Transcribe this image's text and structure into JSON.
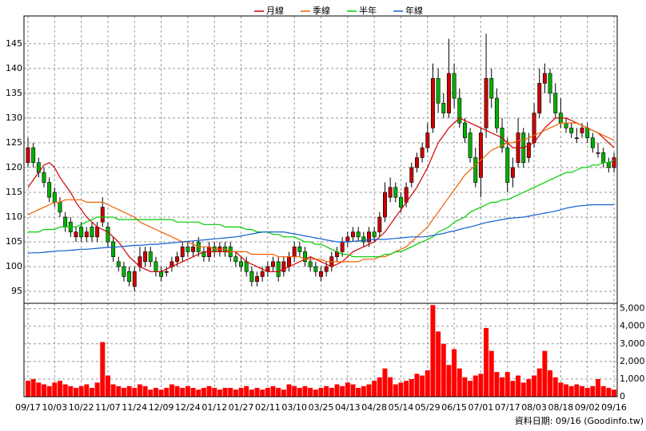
{
  "chart_data": [
    {
      "type": "candlestick",
      "categories": [
        "09/17",
        null,
        null,
        null,
        null,
        "10/03",
        null,
        null,
        null,
        null,
        "10/22",
        null,
        null,
        null,
        null,
        "11/07",
        null,
        null,
        null,
        null,
        "11/24",
        null,
        null,
        null,
        null,
        "12/09",
        null,
        null,
        null,
        null,
        "12/24",
        null,
        null,
        null,
        null,
        "01/12",
        null,
        null,
        null,
        null,
        "01/27",
        null,
        null,
        null,
        null,
        "02/11",
        null,
        null,
        null,
        null,
        "03/10",
        null,
        null,
        null,
        null,
        "03/25",
        null,
        null,
        null,
        null,
        "04/13",
        null,
        null,
        null,
        null,
        "04/28",
        null,
        null,
        null,
        null,
        "05/14",
        null,
        null,
        null,
        null,
        "05/29",
        null,
        null,
        null,
        null,
        "06/15",
        null,
        null,
        null,
        null,
        "07/01",
        null,
        null,
        null,
        null,
        "07/17",
        null,
        null,
        null,
        null,
        "08/03",
        null,
        null,
        null,
        null,
        "08/18",
        null,
        null,
        null,
        null,
        "09/02",
        null,
        null,
        null,
        null,
        "09/16"
      ],
      "open": [
        121,
        124,
        121,
        119,
        117,
        115,
        113,
        110,
        109,
        106,
        108,
        106,
        108,
        106,
        109,
        108,
        105,
        101,
        100,
        99,
        96,
        100,
        101,
        103,
        101,
        99,
        99,
        100,
        101,
        102,
        104,
        103,
        105,
        103,
        102,
        104,
        103,
        104,
        104,
        102,
        101,
        101,
        99,
        97,
        98,
        99,
        100,
        101,
        99,
        100,
        102,
        104,
        103,
        101,
        100,
        98,
        99,
        100,
        102,
        103,
        105,
        106,
        107,
        106,
        105,
        107,
        107,
        110,
        114,
        116,
        114,
        113,
        117,
        120,
        122,
        124,
        128,
        138,
        133,
        131,
        139,
        134,
        129,
        127,
        122,
        118,
        128,
        138,
        134,
        128,
        124,
        118,
        121,
        127,
        122,
        125,
        131,
        137,
        139,
        135,
        131,
        129,
        128,
        126,
        127,
        128,
        126,
        123,
        123,
        121,
        120
      ],
      "high": [
        126,
        125,
        122,
        120,
        118,
        116,
        114,
        111,
        110,
        108,
        109,
        108,
        109,
        109,
        114,
        109,
        106,
        102,
        101,
        100,
        100,
        104,
        104,
        104,
        102,
        100,
        100,
        102,
        103,
        105,
        105,
        105,
        106,
        104,
        105,
        105,
        105,
        105,
        105,
        103,
        102,
        102,
        100,
        99,
        100,
        101,
        102,
        102,
        102,
        103,
        105,
        105,
        104,
        102,
        101,
        100,
        101,
        103,
        104,
        106,
        107,
        108,
        108,
        107,
        108,
        108,
        111,
        117,
        118,
        117,
        115,
        117,
        121,
        123,
        125,
        129,
        141,
        140,
        135,
        146,
        141,
        136,
        130,
        128,
        124,
        128,
        147,
        140,
        136,
        130,
        126,
        122,
        130,
        128,
        127,
        133,
        140,
        141,
        140,
        137,
        134,
        130,
        129,
        128,
        129,
        129,
        127,
        125,
        124,
        122,
        123
      ],
      "low": [
        120,
        120,
        118,
        116,
        113,
        112,
        110,
        107,
        106,
        105,
        105,
        105,
        105,
        105,
        108,
        104,
        101,
        99,
        97,
        96,
        95,
        99,
        100,
        100,
        98,
        97,
        98,
        99,
        100,
        101,
        102,
        102,
        102,
        101,
        101,
        102,
        102,
        102,
        101,
        100,
        99,
        98,
        96,
        96,
        97,
        98,
        99,
        97,
        98,
        99,
        101,
        102,
        100,
        99,
        98,
        97,
        98,
        99,
        101,
        102,
        104,
        105,
        105,
        104,
        104,
        105,
        106,
        109,
        113,
        113,
        111,
        112,
        116,
        119,
        121,
        123,
        127,
        131,
        130,
        130,
        132,
        128,
        125,
        121,
        116,
        114,
        126,
        132,
        127,
        123,
        115,
        116,
        120,
        120,
        121,
        124,
        130,
        135,
        133,
        130,
        128,
        127,
        126,
        125,
        126,
        125,
        123,
        122,
        120,
        119,
        119
      ],
      "close": [
        124,
        121,
        119,
        117,
        114,
        113,
        111,
        108,
        107,
        107,
        106,
        107,
        106,
        108,
        112,
        105,
        102,
        100,
        98,
        97,
        99,
        102,
        103,
        101,
        99,
        98,
        99,
        101,
        102,
        104,
        103,
        104,
        103,
        102,
        104,
        103,
        104,
        103,
        102,
        101,
        100,
        99,
        97,
        98,
        99,
        100,
        101,
        98,
        101,
        102,
        104,
        103,
        101,
        100,
        99,
        99,
        100,
        102,
        103,
        105,
        106,
        107,
        106,
        105,
        107,
        106,
        110,
        115,
        116,
        114,
        112,
        116,
        120,
        122,
        124,
        127,
        138,
        133,
        131,
        139,
        134,
        129,
        126,
        122,
        117,
        127,
        138,
        134,
        128,
        124,
        117,
        120,
        127,
        121,
        125,
        131,
        137,
        139,
        135,
        131,
        129,
        128,
        127,
        126,
        128,
        126,
        124,
        123,
        121,
        120,
        122
      ],
      "up_color": "#cc0000",
      "down_color": "#00b000",
      "series": [
        {
          "name": "月線",
          "color": "#d00000",
          "values": [
            116,
            117.5,
            119,
            120.5,
            121,
            120,
            118,
            116.5,
            115,
            113,
            111.5,
            110,
            109,
            108,
            107.5,
            107,
            106,
            105,
            103.5,
            102,
            101,
            100,
            99.5,
            99,
            99,
            99,
            99.5,
            100,
            100.5,
            101,
            101.5,
            102,
            102.5,
            103,
            103,
            103,
            103,
            103,
            103,
            103,
            102,
            101,
            100.5,
            100,
            99.5,
            99,
            99,
            99,
            99.5,
            100,
            100.5,
            101,
            101.5,
            102,
            101.5,
            101,
            100.5,
            100,
            100.5,
            101,
            102,
            103,
            103.5,
            104,
            104.5,
            105,
            106,
            107,
            108.5,
            110,
            111.5,
            113,
            114.5,
            116,
            118,
            120,
            122.5,
            125,
            126.5,
            128,
            129,
            130,
            129.5,
            129,
            128.5,
            128,
            127.5,
            127,
            126.5,
            126,
            125,
            124,
            124,
            124,
            124.5,
            125,
            126.5,
            128,
            129,
            130,
            130,
            130,
            129.5,
            129,
            128.5,
            128,
            127.5,
            127,
            126,
            125,
            124
          ]
        },
        {
          "name": "季線",
          "color": "#f06000",
          "values": [
            110.5,
            111,
            111.5,
            112,
            112.5,
            113,
            113,
            113.5,
            113.5,
            113.5,
            113.5,
            113,
            113,
            113,
            113,
            112.5,
            112,
            111.5,
            111,
            110.5,
            110,
            109,
            108.5,
            108,
            107.5,
            107,
            106.5,
            106,
            105.5,
            105,
            105,
            104.5,
            104,
            104,
            104,
            103.5,
            103.5,
            103.5,
            103,
            103,
            103,
            103,
            102.5,
            102.5,
            102.5,
            102.5,
            102.5,
            102,
            102,
            102,
            102,
            102,
            101.5,
            101.5,
            101.5,
            101.5,
            101,
            101,
            101,
            101,
            101,
            101,
            101,
            101.5,
            101.5,
            101.5,
            102,
            102,
            102.5,
            103,
            103.5,
            104,
            105,
            106,
            107,
            108,
            109.5,
            111,
            112.5,
            114,
            115.5,
            117,
            118.5,
            119.5,
            120.5,
            121.5,
            122.5,
            123.5,
            124,
            124.5,
            125,
            125,
            125.5,
            125.5,
            126,
            126.5,
            127,
            127.5,
            128,
            128.5,
            129,
            129,
            129,
            129,
            128.5,
            128,
            127.5,
            127,
            126.5,
            126,
            125.5
          ]
        },
        {
          "name": "半年",
          "color": "#00cc00",
          "values": [
            107,
            107,
            107,
            107.5,
            107.5,
            107.5,
            108,
            108,
            108,
            108,
            108.5,
            109,
            109.5,
            110,
            110,
            110,
            110,
            109.5,
            109.5,
            109.5,
            109.5,
            109.5,
            109.5,
            109.5,
            109.5,
            109.5,
            109.5,
            109.5,
            109,
            109,
            109,
            109,
            109,
            108.5,
            108.5,
            108.5,
            108.5,
            108,
            108,
            108,
            108,
            107.5,
            107.5,
            107,
            107,
            107,
            106.5,
            106.5,
            106,
            106,
            106,
            105.5,
            105,
            105,
            104.5,
            104.5,
            104,
            103.5,
            103,
            102.5,
            102.5,
            102,
            102,
            102,
            102,
            102,
            102,
            102.5,
            102.5,
            103,
            103,
            103.5,
            104,
            104.5,
            105,
            105.5,
            106,
            107,
            107.5,
            108,
            109,
            109.5,
            110,
            111,
            111.5,
            112,
            112.5,
            113,
            113,
            113.5,
            113.5,
            114,
            114.5,
            115,
            115.5,
            116,
            116.5,
            117,
            117.5,
            118,
            118.5,
            119,
            119,
            119.5,
            120,
            120,
            120.5,
            120.5,
            121,
            121,
            121.5
          ]
        },
        {
          "name": "年線",
          "color": "#1060d0",
          "values": [
            102.7,
            102.8,
            102.8,
            102.9,
            103,
            103.1,
            103.2,
            103.2,
            103.3,
            103.4,
            103.5,
            103.5,
            103.6,
            103.7,
            103.8,
            103.9,
            103.9,
            104,
            104.1,
            104.2,
            104.3,
            104.3,
            104.4,
            104.5,
            104.5,
            104.6,
            104.7,
            104.8,
            104.9,
            105,
            105.1,
            105.2,
            105.3,
            105.4,
            105.5,
            105.6,
            105.7,
            105.8,
            105.9,
            106,
            106.2,
            106.4,
            106.6,
            106.8,
            107,
            107,
            107,
            107,
            107,
            106.8,
            106.6,
            106.4,
            106.2,
            106,
            105.8,
            105.6,
            105.4,
            105.2,
            105,
            105,
            105,
            105.1,
            105.2,
            105.3,
            105.4,
            105.5,
            105.5,
            105.5,
            105.6,
            105.7,
            105.8,
            105.9,
            106,
            106,
            106,
            106.1,
            106.3,
            106.5,
            106.7,
            107,
            107.2,
            107.5,
            107.8,
            108,
            108.3,
            108.6,
            108.9,
            109.1,
            109.3,
            109.5,
            109.7,
            109.8,
            109.9,
            110,
            110.2,
            110.4,
            110.6,
            110.8,
            111,
            111.2,
            111.5,
            111.8,
            112,
            112.2,
            112.3,
            112.4,
            112.5,
            112.5,
            112.5,
            112.5,
            112.5
          ]
        }
      ],
      "ylim": [
        92.6,
        150.6
      ],
      "yticks": [
        95,
        100,
        105,
        110,
        115,
        120,
        125,
        130,
        135,
        140,
        145
      ],
      "grid": true,
      "footer": "資料日期: 09/16 (Goodinfo.tw)"
    },
    {
      "type": "bar",
      "color": "#ff0000",
      "values": [
        900,
        1000,
        800,
        700,
        600,
        800,
        900,
        700,
        600,
        500,
        600,
        700,
        500,
        800,
        3100,
        1200,
        700,
        600,
        500,
        600,
        500,
        700,
        600,
        400,
        500,
        400,
        500,
        700,
        600,
        500,
        600,
        500,
        400,
        500,
        600,
        500,
        400,
        500,
        500,
        400,
        500,
        600,
        400,
        500,
        400,
        500,
        600,
        500,
        400,
        700,
        600,
        500,
        600,
        500,
        400,
        500,
        600,
        500,
        700,
        600,
        800,
        700,
        500,
        600,
        700,
        900,
        1100,
        1600,
        1100,
        700,
        800,
        900,
        1000,
        1300,
        1200,
        1500,
        5200,
        3700,
        3000,
        1800,
        2700,
        1600,
        1100,
        900,
        1200,
        1300,
        3900,
        2600,
        1400,
        1100,
        1400,
        900,
        1200,
        800,
        1000,
        1200,
        1600,
        2600,
        1500,
        1100,
        800,
        700,
        600,
        700,
        600,
        500,
        600,
        1000,
        600,
        500,
        400
      ],
      "ylim": [
        0,
        5300
      ],
      "yticks": [
        0,
        {
          "value": 1000,
          "label": "1,000"
        },
        {
          "value": 2000,
          "label": "2,000"
        },
        {
          "value": 3000,
          "label": "3,000"
        },
        {
          "value": 4000,
          "label": "4,000"
        },
        {
          "value": 5000,
          "label": "5,000"
        }
      ],
      "grid": true
    }
  ]
}
